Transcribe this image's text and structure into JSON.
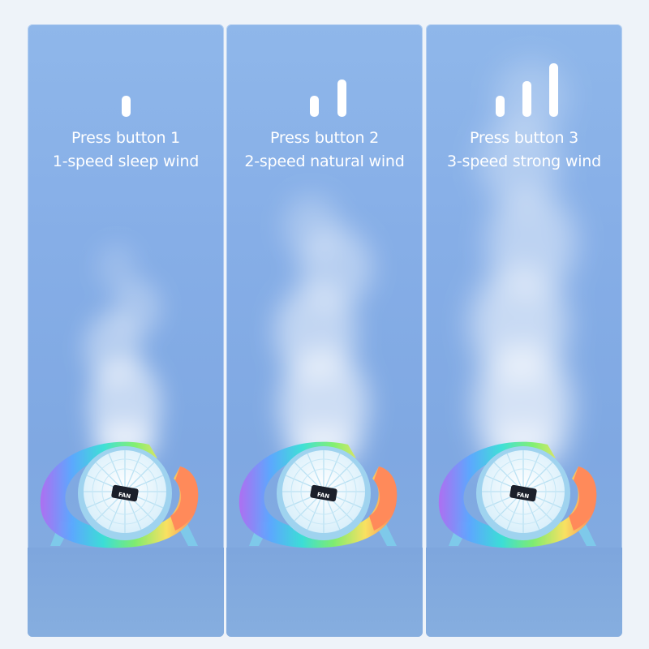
{
  "panels": [
    {
      "level": 1,
      "title": "Press button 1",
      "subtitle": "1-speed sleep wind",
      "fan_label": "FAN"
    },
    {
      "level": 2,
      "title": "Press button 2",
      "subtitle": "2-speed natural wind",
      "fan_label": "FAN"
    },
    {
      "level": 3,
      "title": "Press button 3",
      "subtitle": "3-speed strong wind",
      "fan_label": "FAN"
    }
  ],
  "colors": {
    "panel_bg": "#86aee7",
    "text": "#ffffff",
    "fan_body": "#a9d6ef",
    "led_ring": [
      "#b06cf2",
      "#5aa8ff",
      "#38e0d6",
      "#7ef06a",
      "#ffe45a",
      "#ff9a4a",
      "#ff6a6a"
    ]
  },
  "icons": {
    "speed_indicator": "signal-bars-icon",
    "fan": "desk-fan-icon"
  }
}
